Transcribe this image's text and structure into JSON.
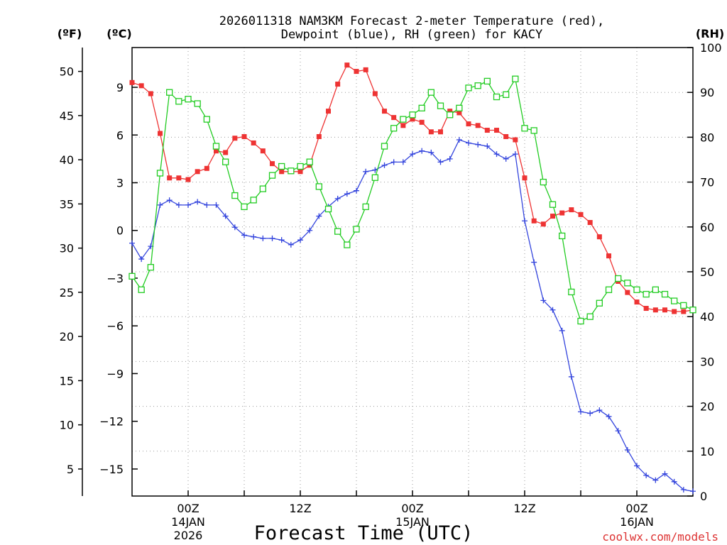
{
  "chart_data": {
    "type": "line",
    "title_line1": "2026011318 NAM3KM Forecast 2-meter Temperature (red),",
    "title_line2": "Dewpoint (blue), RH (green) for KACY",
    "xlabel": "Forecast Time (UTC)",
    "credit": "coolwx.com/models",
    "left_unit_f": "(ºF)",
    "left_unit_c": "(ºC)",
    "right_unit": "(RH)",
    "x_range_hours": [
      0,
      60
    ],
    "x_ticks": [
      {
        "hour": 6,
        "label": "00Z",
        "sub1": "14JAN",
        "sub2": "2026"
      },
      {
        "hour": 18,
        "label": "12Z",
        "sub1": "",
        "sub2": ""
      },
      {
        "hour": 30,
        "label": "00Z",
        "sub1": "15JAN",
        "sub2": ""
      },
      {
        "hour": 42,
        "label": "12Z",
        "sub1": "",
        "sub2": ""
      },
      {
        "hour": 54,
        "label": "00Z",
        "sub1": "16JAN",
        "sub2": ""
      }
    ],
    "celsius_range": [
      -16.7,
      11.5
    ],
    "celsius_ticks": [
      {
        "v": 9,
        "label": "9"
      },
      {
        "v": 6,
        "label": "6"
      },
      {
        "v": 3,
        "label": "3"
      },
      {
        "v": 0,
        "label": "0"
      },
      {
        "v": -3,
        "label": "−3"
      },
      {
        "v": -6,
        "label": "−6"
      },
      {
        "v": -9,
        "label": "−9"
      },
      {
        "v": -12,
        "label": "−12"
      },
      {
        "v": -15,
        "label": "−15"
      }
    ],
    "fahrenheit_ticks": [
      {
        "v": 50,
        "label": "50"
      },
      {
        "v": 45,
        "label": "45"
      },
      {
        "v": 40,
        "label": "40"
      },
      {
        "v": 35,
        "label": "35"
      },
      {
        "v": 30,
        "label": "30"
      },
      {
        "v": 25,
        "label": "25"
      },
      {
        "v": 20,
        "label": "20"
      },
      {
        "v": 15,
        "label": "15"
      },
      {
        "v": 10,
        "label": "10"
      },
      {
        "v": 5,
        "label": "5"
      }
    ],
    "rh_range": [
      0,
      100
    ],
    "rh_ticks": [
      {
        "v": 100,
        "label": "100"
      },
      {
        "v": 90,
        "label": "90"
      },
      {
        "v": 80,
        "label": "80"
      },
      {
        "v": 70,
        "label": "70"
      },
      {
        "v": 60,
        "label": "60"
      },
      {
        "v": 50,
        "label": "50"
      },
      {
        "v": 40,
        "label": "40"
      },
      {
        "v": 30,
        "label": "30"
      },
      {
        "v": 20,
        "label": "20"
      },
      {
        "v": 10,
        "label": "10"
      },
      {
        "v": 0,
        "label": "0"
      }
    ],
    "series": [
      {
        "name": "Temperature",
        "unit": "C",
        "color": "#ee3333",
        "marker": "filled-square",
        "hours": [
          0,
          1,
          2,
          3,
          4,
          5,
          6,
          7,
          8,
          9,
          10,
          11,
          12,
          13,
          14,
          15,
          16,
          17,
          18,
          19,
          20,
          21,
          22,
          23,
          24,
          25,
          26,
          27,
          28,
          29,
          30,
          31,
          32,
          33,
          34,
          35,
          36,
          37,
          38,
          39,
          40,
          41,
          42,
          43,
          44,
          45,
          46,
          47,
          48,
          49,
          50,
          51,
          52,
          53,
          54,
          55,
          56,
          57,
          58,
          59,
          60
        ],
        "values": [
          9.3,
          9.1,
          8.6,
          6.1,
          3.3,
          3.3,
          3.2,
          3.7,
          3.9,
          5.0,
          4.9,
          5.8,
          5.9,
          5.5,
          5.0,
          4.2,
          3.7,
          3.7,
          3.7,
          4.1,
          5.9,
          7.5,
          9.2,
          10.4,
          10.0,
          10.1,
          8.6,
          7.5,
          7.1,
          6.6,
          7.0,
          6.8,
          6.2,
          6.2,
          7.5,
          7.4,
          6.7,
          6.6,
          6.3,
          6.3,
          5.9,
          5.7,
          3.3,
          0.6,
          0.4,
          0.9,
          1.1,
          1.3,
          1.0,
          0.5,
          -0.4,
          -1.6,
          -3.2,
          -3.9,
          -4.5,
          -4.9,
          -5.0,
          -5.0,
          -5.1,
          -5.1,
          -5.0
        ]
      },
      {
        "name": "Dewpoint",
        "unit": "C",
        "color": "#3344dd",
        "marker": "plus",
        "hours": [
          0,
          1,
          2,
          3,
          4,
          5,
          6,
          7,
          8,
          9,
          10,
          11,
          12,
          13,
          14,
          15,
          16,
          17,
          18,
          19,
          20,
          21,
          22,
          23,
          24,
          25,
          26,
          27,
          28,
          29,
          30,
          31,
          32,
          33,
          34,
          35,
          36,
          37,
          38,
          39,
          40,
          41,
          42,
          43,
          44,
          45,
          46,
          47,
          48,
          49,
          50,
          51,
          52,
          53,
          54,
          55,
          56,
          57,
          58,
          59,
          60
        ],
        "values": [
          -0.8,
          -1.8,
          -1.0,
          1.6,
          1.9,
          1.6,
          1.6,
          1.8,
          1.6,
          1.6,
          0.9,
          0.2,
          -0.3,
          -0.4,
          -0.5,
          -0.5,
          -0.6,
          -0.9,
          -0.6,
          0.0,
          0.9,
          1.5,
          2.0,
          2.3,
          2.5,
          3.7,
          3.8,
          4.1,
          4.3,
          4.3,
          4.8,
          5.0,
          4.9,
          4.3,
          4.5,
          5.7,
          5.5,
          5.4,
          5.3,
          4.8,
          4.5,
          4.8,
          0.6,
          -2.0,
          -4.4,
          -5.0,
          -6.3,
          -9.2,
          -11.4,
          -11.5,
          -11.3,
          -11.7,
          -12.6,
          -13.8,
          -14.8,
          -15.4,
          -15.7,
          -15.3,
          -15.8,
          -16.3,
          -16.4
        ]
      },
      {
        "name": "RH",
        "unit": "%",
        "color": "#22cc22",
        "marker": "open-square",
        "hours": [
          0,
          1,
          2,
          3,
          4,
          5,
          6,
          7,
          8,
          9,
          10,
          11,
          12,
          13,
          14,
          15,
          16,
          17,
          18,
          19,
          20,
          21,
          22,
          23,
          24,
          25,
          26,
          27,
          28,
          29,
          30,
          31,
          32,
          33,
          34,
          35,
          36,
          37,
          38,
          39,
          40,
          41,
          42,
          43,
          44,
          45,
          46,
          47,
          48,
          49,
          50,
          51,
          52,
          53,
          54,
          55,
          56,
          57,
          58,
          59,
          60
        ],
        "values": [
          49,
          46,
          51,
          72,
          90,
          88,
          88.5,
          87.5,
          84,
          78,
          74.5,
          67,
          64.5,
          66,
          68.5,
          71.5,
          73.5,
          72.5,
          73.5,
          74.5,
          69,
          64,
          59,
          56,
          59.5,
          64.5,
          71,
          78,
          82,
          84,
          85,
          86.5,
          90,
          87,
          85,
          86.5,
          91,
          91.5,
          92.5,
          89,
          89.5,
          93,
          82,
          81.5,
          70,
          65,
          58,
          45.5,
          39,
          40,
          43,
          46,
          48.5,
          47.5,
          46,
          45,
          46,
          45,
          43.5,
          42.5,
          41.5
        ]
      }
    ]
  }
}
